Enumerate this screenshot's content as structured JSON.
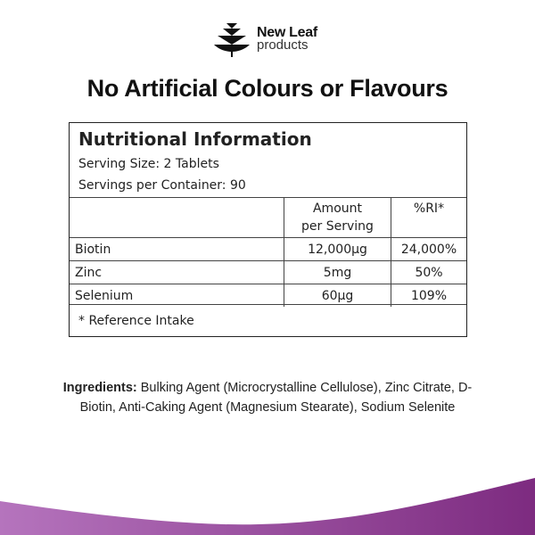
{
  "brand": {
    "name": "New Leaf",
    "tagline": "products"
  },
  "headline": "No Artificial Colours or Flavours",
  "nutrition": {
    "title": "Nutritional Information",
    "serving_size": "Serving Size: 2 Tablets",
    "servings_per_container": "Servings per Container: 90",
    "columns": [
      "",
      "Amount per Serving",
      "%RI*"
    ],
    "column_amount_line1": "Amount",
    "column_amount_line2": "per Serving",
    "rows": [
      {
        "name": "Biotin",
        "amount": "12,000µg",
        "ri": "24,000%"
      },
      {
        "name": "Zinc",
        "amount": "5mg",
        "ri": "50%"
      },
      {
        "name": "Selenium",
        "amount": "60µg",
        "ri": "109%"
      }
    ],
    "footnote": "* Reference Intake"
  },
  "ingredients": {
    "label": "Ingredients:",
    "text": " Bulking Agent (Microcrystalline Cellulose), Zinc Citrate, D-Biotin, Anti-Caking Agent (Magnesium Stearate), Sodium Selenite"
  },
  "colors": {
    "wave_start": "#b574bd",
    "wave_end": "#7d2b80"
  }
}
